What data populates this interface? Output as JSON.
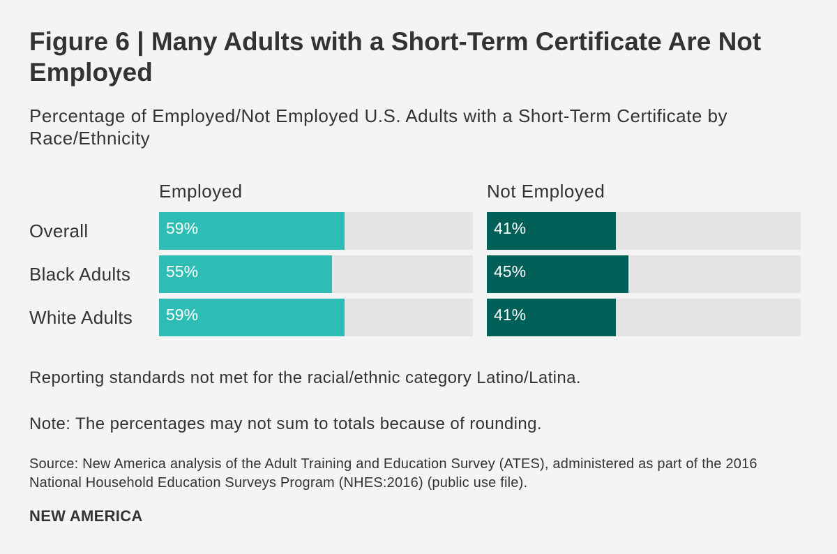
{
  "header": {
    "title": "Figure 6 | Many Adults with a Short-Term Certificate Are Not Employed",
    "subtitle": "Percentage of Employed/Not Employed U.S. Adults with a Short-Term Certificate by Race/Ethnicity"
  },
  "chart_data": {
    "type": "bar",
    "orientation": "horizontal",
    "title": "Figure 6 | Many Adults with a Short-Term Certificate Are Not Employed",
    "subtitle": "Percentage of Employed/Not Employed U.S. Adults with a Short-Term Certificate by Race/Ethnicity",
    "categories": [
      "Overall",
      "Black Adults",
      "White Adults"
    ],
    "xlim": [
      0,
      100
    ],
    "grid": false,
    "series": [
      {
        "name": "Employed",
        "values": [
          59,
          55,
          59
        ],
        "labels": [
          "59%",
          "55%",
          "59%"
        ],
        "color": "#2ebdb5"
      },
      {
        "name": "Not Employed",
        "values": [
          41,
          45,
          41
        ],
        "labels": [
          "41%",
          "45%",
          "41%"
        ],
        "color": "#005f56"
      }
    ],
    "track_color": "#e5e5e5"
  },
  "notes": {
    "reporting": "Reporting standards not met for the racial/ethnic category Latino/Latina.",
    "rounding": "Note: The percentages may not sum to totals because of rounding.",
    "source": "Source: New America analysis of the Adult Training and Education Survey (ATES), administered as part of the 2016 National Household Education Surveys Program (NHES:2016) (public use file)."
  },
  "footer": {
    "brand": "NEW AMERICA"
  }
}
